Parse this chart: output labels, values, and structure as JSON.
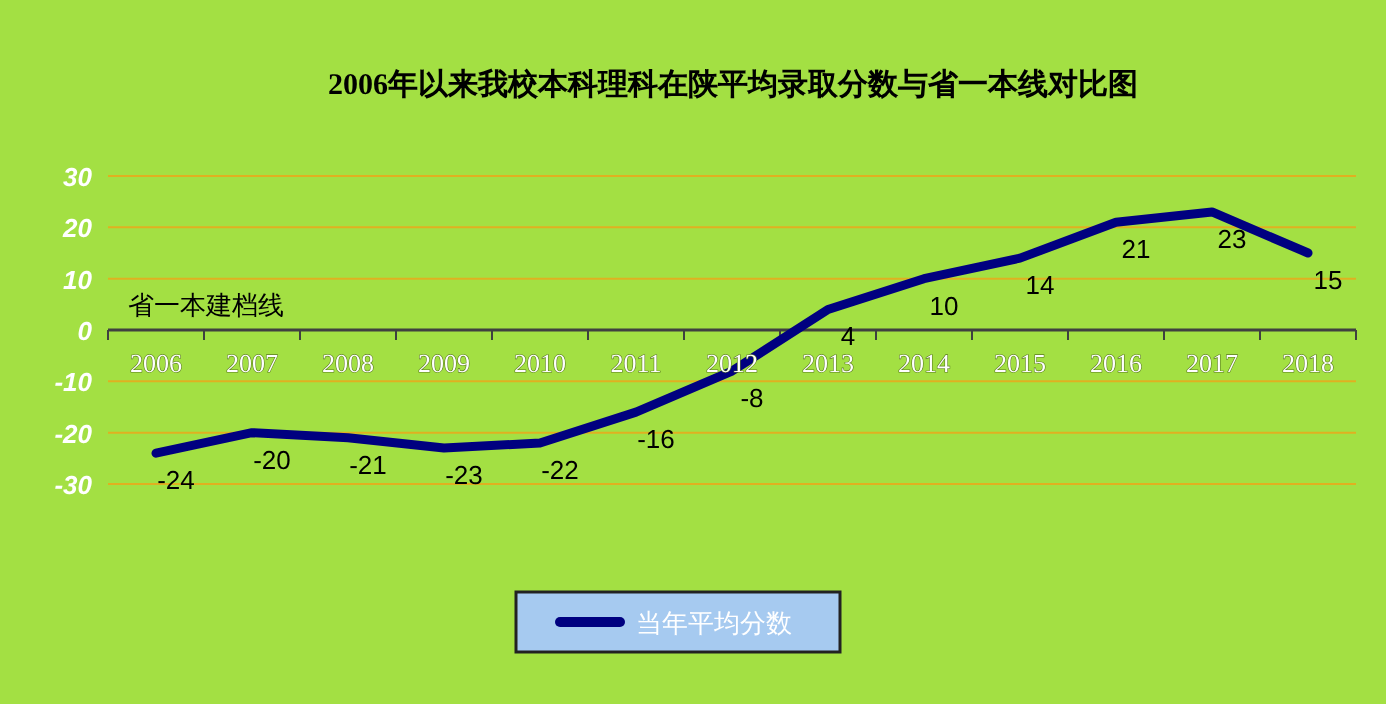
{
  "chart_data": {
    "type": "line",
    "title": "2006年以来我校本科理科在陕平均录取分数与省一本线对比图",
    "categories": [
      "2006",
      "2007",
      "2008",
      "2009",
      "2010",
      "2011",
      "2012",
      "2013",
      "2014",
      "2015",
      "2016",
      "2017",
      "2018"
    ],
    "series": [
      {
        "name": "当年平均分数",
        "color": "#000080",
        "values": [
          -24,
          -20,
          -21,
          -23,
          -22,
          -16,
          -8,
          4,
          10,
          14,
          21,
          23,
          15
        ]
      }
    ],
    "ylim": [
      -30,
      30
    ],
    "yticks": [
      -30,
      -20,
      -10,
      0,
      10,
      20,
      30
    ],
    "grid": "y",
    "legend": "bottom",
    "data_labels": true,
    "marker": "none",
    "line_style": "solid",
    "annotations": [
      "省一本建档线"
    ]
  }
}
